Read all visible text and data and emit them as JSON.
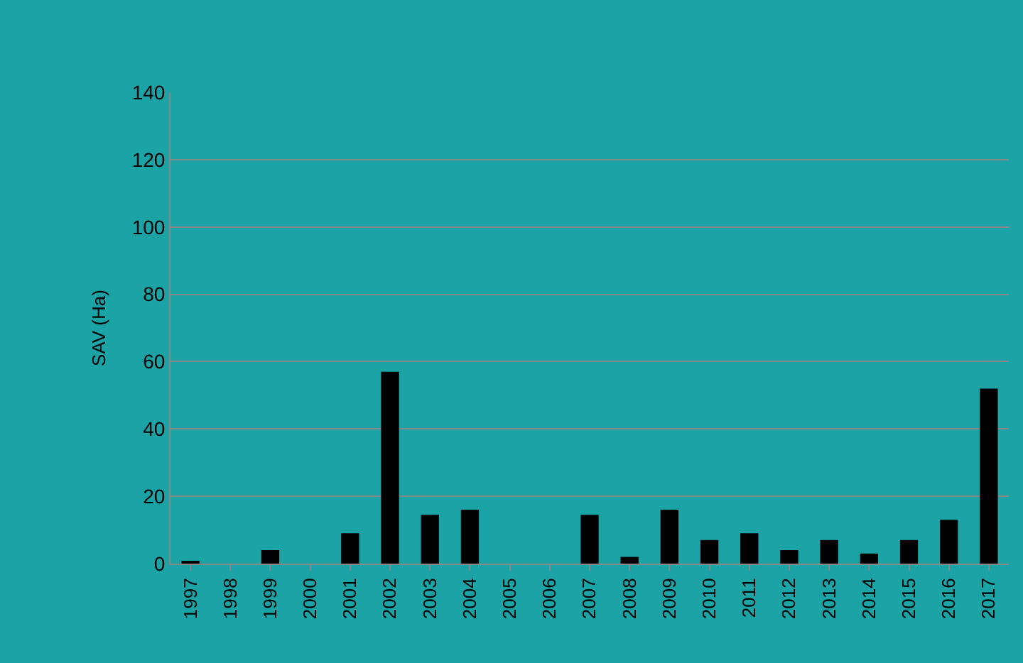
{
  "chart_data": {
    "type": "bar",
    "ylabel": "SAV (Ha)",
    "categories": [
      "1997",
      "1998",
      "1999",
      "2000",
      "2001",
      "2002",
      "2003",
      "2004",
      "2005",
      "2006",
      "2007",
      "2008",
      "2009",
      "2010",
      "2011",
      "2012",
      "2013",
      "2014",
      "2015",
      "2016",
      "2017"
    ],
    "values": [
      0.5,
      0,
      4,
      0,
      9,
      57,
      14.5,
      16,
      0,
      0,
      14.5,
      2,
      16,
      7,
      9,
      4,
      7,
      3,
      7,
      13,
      52
    ],
    "color": "#000000",
    "ylim": [
      0,
      140
    ],
    "yticks": [
      0,
      20,
      40,
      60,
      80,
      100,
      120,
      140
    ],
    "grid": "y"
  }
}
